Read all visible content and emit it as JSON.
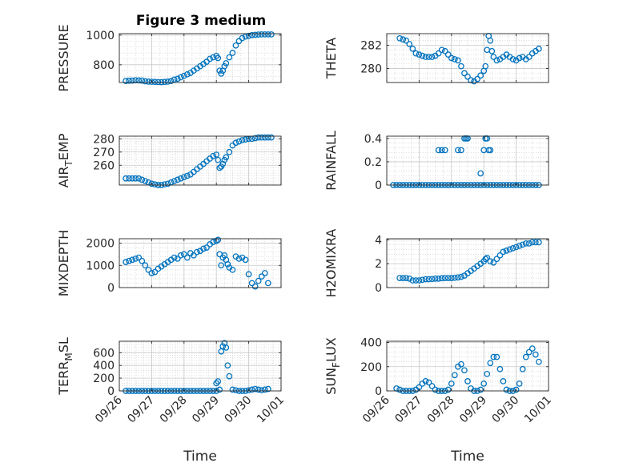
{
  "title": "Figure 3 medium",
  "colors": {
    "marker": "#0072bd",
    "axis": "#262626",
    "grid": "#c8c8c8",
    "background": "#ffffff"
  },
  "chart_data": [
    {
      "id": "pressure",
      "type": "scatter",
      "ylabel": "PRESSURE",
      "ylabel_sub": "",
      "ylim": [
        680,
        1010
      ],
      "yticks": [
        800,
        1000
      ],
      "xlim": [
        0,
        5
      ],
      "xticks": [],
      "x": [
        0.2,
        0.3,
        0.4,
        0.5,
        0.6,
        0.7,
        0.8,
        0.9,
        1.0,
        1.1,
        1.2,
        1.3,
        1.4,
        1.5,
        1.6,
        1.7,
        1.8,
        1.9,
        2.0,
        2.1,
        2.2,
        2.3,
        2.4,
        2.5,
        2.6,
        2.7,
        2.8,
        2.9,
        3.0,
        3.05,
        3.1,
        3.15,
        3.2,
        3.25,
        3.3,
        3.4,
        3.5,
        3.6,
        3.7,
        3.8,
        3.9,
        4.0,
        4.1,
        4.2,
        4.3,
        4.4,
        4.5,
        4.6,
        4.7
      ],
      "y": [
        690,
        692,
        693,
        695,
        694,
        693,
        688,
        686,
        685,
        684,
        683,
        682,
        684,
        686,
        690,
        700,
        705,
        715,
        725,
        735,
        745,
        760,
        775,
        790,
        805,
        820,
        840,
        850,
        860,
        845,
        760,
        740,
        760,
        790,
        810,
        850,
        880,
        930,
        960,
        980,
        990,
        995,
        1000,
        1002,
        1004,
        1005,
        1005,
        1005,
        1005
      ]
    },
    {
      "id": "theta",
      "type": "scatter",
      "ylabel": "THETA",
      "ylabel_sub": "",
      "ylim": [
        278.8,
        283.0
      ],
      "yticks": [
        280,
        282
      ],
      "xlim": [
        0,
        5
      ],
      "xticks": [],
      "x": [
        0.4,
        0.5,
        0.6,
        0.7,
        0.8,
        0.9,
        1.0,
        1.1,
        1.2,
        1.3,
        1.4,
        1.5,
        1.6,
        1.7,
        1.8,
        1.9,
        2.0,
        2.1,
        2.2,
        2.3,
        2.4,
        2.5,
        2.6,
        2.7,
        2.8,
        2.9,
        3.0,
        3.05,
        3.1,
        3.15,
        3.2,
        3.25,
        3.3,
        3.4,
        3.5,
        3.6,
        3.7,
        3.8,
        3.9,
        4.0,
        4.1,
        4.2,
        4.3,
        4.4,
        4.5,
        4.6,
        4.7
      ],
      "y": [
        282.6,
        282.5,
        282.4,
        282.1,
        281.7,
        281.3,
        281.2,
        281.1,
        281.0,
        281.0,
        281.0,
        281.1,
        281.3,
        281.6,
        281.5,
        281.2,
        280.9,
        280.8,
        280.7,
        280.2,
        279.6,
        279.3,
        279.0,
        278.9,
        279.1,
        279.4,
        279.8,
        280.2,
        281.6,
        282.8,
        282.4,
        281.5,
        281.0,
        280.7,
        280.8,
        281.0,
        281.2,
        281.0,
        280.8,
        280.7,
        280.9,
        281.0,
        280.8,
        281.0,
        281.3,
        281.5,
        281.7
      ]
    },
    {
      "id": "air_temp",
      "type": "scatter",
      "ylabel": "AIR",
      "ylabel_sub": "T",
      "ylabel_suffix": "EMP",
      "ylim": [
        245,
        282
      ],
      "yticks": [
        260,
        270,
        280
      ],
      "xlim": [
        0,
        5
      ],
      "xticks": [],
      "x": [
        0.2,
        0.3,
        0.4,
        0.5,
        0.6,
        0.7,
        0.8,
        0.9,
        1.0,
        1.1,
        1.2,
        1.3,
        1.4,
        1.5,
        1.6,
        1.7,
        1.8,
        1.9,
        2.0,
        2.1,
        2.2,
        2.3,
        2.4,
        2.5,
        2.6,
        2.7,
        2.8,
        2.9,
        3.0,
        3.05,
        3.1,
        3.15,
        3.2,
        3.25,
        3.3,
        3.4,
        3.5,
        3.6,
        3.7,
        3.8,
        3.9,
        4.0,
        4.1,
        4.2,
        4.3,
        4.4,
        4.5,
        4.6,
        4.7
      ],
      "y": [
        250,
        250,
        250,
        250,
        250,
        249,
        248,
        247,
        246,
        245.5,
        245,
        245,
        245.5,
        246,
        247,
        248,
        249,
        250,
        251,
        252,
        253,
        255,
        257,
        259,
        261,
        263,
        265,
        267,
        268,
        264,
        258,
        259,
        261,
        264,
        266,
        270,
        275,
        277,
        278,
        279,
        279.5,
        280,
        280,
        280.5,
        281,
        281,
        281,
        281,
        281
      ]
    },
    {
      "id": "rainfall",
      "type": "scatter",
      "ylabel": "RAINFALL",
      "ylabel_sub": "",
      "ylim": [
        0,
        0.42
      ],
      "yticks": [
        0,
        0.2,
        0.4
      ],
      "xlim": [
        0,
        5
      ],
      "xticks": [],
      "x": [
        0.2,
        0.3,
        0.4,
        0.5,
        0.6,
        0.7,
        0.8,
        0.9,
        1.0,
        1.1,
        1.2,
        1.3,
        1.4,
        1.5,
        1.6,
        1.7,
        1.8,
        1.9,
        2.0,
        2.1,
        2.2,
        2.3,
        2.4,
        2.5,
        2.6,
        2.7,
        2.8,
        2.9,
        3.0,
        3.1,
        3.2,
        3.3,
        3.4,
        3.5,
        3.6,
        3.7,
        3.8,
        3.9,
        4.0,
        4.1,
        4.2,
        4.3,
        4.4,
        4.5,
        4.6,
        4.7,
        1.6,
        1.7,
        1.8,
        2.2,
        2.3,
        2.4,
        2.45,
        2.5,
        2.9,
        3.0,
        3.05,
        3.1,
        3.15,
        3.2
      ],
      "y": [
        0,
        0,
        0,
        0,
        0,
        0,
        0,
        0,
        0,
        0,
        0,
        0,
        0,
        0,
        0,
        0,
        0,
        0,
        0,
        0,
        0,
        0,
        0,
        0,
        0,
        0,
        0,
        0,
        0,
        0,
        0,
        0,
        0,
        0,
        0,
        0,
        0,
        0,
        0,
        0,
        0,
        0,
        0,
        0,
        0,
        0,
        0.3,
        0.3,
        0.3,
        0.3,
        0.3,
        0.4,
        0.4,
        0.4,
        0.1,
        0.3,
        0.4,
        0.4,
        0.3,
        0.3
      ]
    },
    {
      "id": "mixdepth",
      "type": "scatter",
      "ylabel": "MIXDEPTH",
      "ylabel_sub": "",
      "ylim": [
        0,
        2200
      ],
      "yticks": [
        0,
        1000,
        2000
      ],
      "xlim": [
        0,
        5
      ],
      "xticks": [],
      "x": [
        0.2,
        0.3,
        0.4,
        0.5,
        0.6,
        0.7,
        0.8,
        0.9,
        1.0,
        1.1,
        1.2,
        1.3,
        1.4,
        1.5,
        1.6,
        1.7,
        1.8,
        1.9,
        2.0,
        2.1,
        2.2,
        2.3,
        2.4,
        2.5,
        2.6,
        2.7,
        2.8,
        2.9,
        3.0,
        3.05,
        3.1,
        3.15,
        3.2,
        3.25,
        3.3,
        3.35,
        3.4,
        3.5,
        3.6,
        3.7,
        3.8,
        3.9,
        4.0,
        4.1,
        4.2,
        4.3,
        4.4,
        4.5,
        4.6
      ],
      "y": [
        1150,
        1200,
        1250,
        1300,
        1350,
        1200,
        1000,
        800,
        650,
        700,
        850,
        950,
        1050,
        1150,
        1250,
        1350,
        1300,
        1450,
        1500,
        1350,
        1550,
        1450,
        1600,
        1650,
        1750,
        1800,
        1950,
        2050,
        2100,
        2150,
        1500,
        1000,
        1350,
        1450,
        1250,
        1050,
        900,
        800,
        1400,
        1300,
        1350,
        1250,
        600,
        200,
        50,
        300,
        500,
        650,
        200
      ]
    },
    {
      "id": "h2omixra",
      "type": "scatter",
      "ylabel": "H2OMIXRA",
      "ylabel_sub": "",
      "ylim": [
        0,
        4.1
      ],
      "yticks": [
        0,
        2,
        4
      ],
      "xlim": [
        0,
        5
      ],
      "xticks": [],
      "x": [
        0.4,
        0.5,
        0.6,
        0.7,
        0.8,
        0.9,
        1.0,
        1.1,
        1.2,
        1.3,
        1.4,
        1.5,
        1.6,
        1.7,
        1.8,
        1.9,
        2.0,
        2.1,
        2.2,
        2.3,
        2.4,
        2.5,
        2.6,
        2.7,
        2.8,
        2.9,
        3.0,
        3.05,
        3.1,
        3.2,
        3.3,
        3.4,
        3.5,
        3.6,
        3.7,
        3.8,
        3.9,
        4.0,
        4.1,
        4.2,
        4.3,
        4.4,
        4.5,
        4.6,
        4.7
      ],
      "y": [
        0.8,
        0.8,
        0.8,
        0.75,
        0.6,
        0.6,
        0.6,
        0.65,
        0.7,
        0.7,
        0.72,
        0.75,
        0.75,
        0.78,
        0.8,
        0.8,
        0.8,
        0.82,
        0.85,
        0.9,
        1.0,
        1.2,
        1.4,
        1.6,
        1.8,
        2.0,
        2.2,
        2.4,
        2.5,
        2.2,
        2.1,
        2.4,
        2.7,
        3.0,
        3.1,
        3.2,
        3.3,
        3.4,
        3.5,
        3.6,
        3.7,
        3.7,
        3.8,
        3.8,
        3.8
      ]
    },
    {
      "id": "terr_msl",
      "type": "scatter",
      "ylabel": "TERR",
      "ylabel_sub": "M",
      "ylabel_suffix": "SL",
      "ylim": [
        0,
        780
      ],
      "yticks": [
        0,
        200,
        400,
        600
      ],
      "xlim": [
        0,
        5
      ],
      "xticks": [
        "09/26",
        "09/27",
        "09/28",
        "09/29",
        "09/30",
        "10/01"
      ],
      "xlabel": "Time",
      "x": [
        0.2,
        0.3,
        0.4,
        0.5,
        0.6,
        0.7,
        0.8,
        0.9,
        1.0,
        1.1,
        1.2,
        1.3,
        1.4,
        1.5,
        1.6,
        1.7,
        1.8,
        1.9,
        2.0,
        2.1,
        2.2,
        2.3,
        2.4,
        2.5,
        2.6,
        2.7,
        2.8,
        2.9,
        3.0,
        3.1,
        3.15,
        3.2,
        3.25,
        3.3,
        3.35,
        3.4,
        3.5,
        3.6,
        3.7,
        3.8,
        3.9,
        4.0,
        4.1,
        4.2,
        4.3,
        4.4,
        4.5,
        4.6,
        3.05,
        3.0
      ],
      "y": [
        0,
        0,
        0,
        0,
        0,
        0,
        0,
        0,
        0,
        0,
        0,
        0,
        0,
        0,
        0,
        0,
        0,
        0,
        0,
        0,
        0,
        0,
        0,
        0,
        0,
        0,
        0,
        0,
        0,
        20,
        620,
        700,
        750,
        680,
        400,
        230,
        20,
        10,
        0,
        0,
        0,
        10,
        20,
        30,
        20,
        10,
        20,
        30,
        150,
        120
      ]
    },
    {
      "id": "sun_flux",
      "type": "scatter",
      "ylabel": "SUN",
      "ylabel_sub": "F",
      "ylabel_suffix": "LUX",
      "ylim": [
        0,
        410
      ],
      "yticks": [
        0,
        200,
        400
      ],
      "xlim": [
        0,
        5
      ],
      "xticks": [
        "09/26",
        "09/27",
        "09/28",
        "09/29",
        "09/30",
        "10/01"
      ],
      "xlabel": "Time",
      "x": [
        0.3,
        0.4,
        0.5,
        0.6,
        0.7,
        0.8,
        0.9,
        1.0,
        1.1,
        1.2,
        1.3,
        1.4,
        1.5,
        1.6,
        1.7,
        1.8,
        1.9,
        2.0,
        2.1,
        2.2,
        2.3,
        2.4,
        2.5,
        2.6,
        2.7,
        2.8,
        2.9,
        3.0,
        3.1,
        3.2,
        3.3,
        3.4,
        3.5,
        3.6,
        3.7,
        3.8,
        3.9,
        4.0,
        4.1,
        4.2,
        4.3,
        4.4,
        4.5,
        4.6,
        4.7
      ],
      "y": [
        20,
        10,
        0,
        0,
        0,
        0,
        10,
        30,
        60,
        80,
        70,
        40,
        10,
        0,
        0,
        0,
        10,
        60,
        130,
        200,
        220,
        170,
        80,
        20,
        0,
        0,
        10,
        60,
        140,
        230,
        280,
        280,
        180,
        80,
        10,
        0,
        0,
        10,
        60,
        180,
        280,
        320,
        350,
        300,
        240
      ]
    }
  ]
}
